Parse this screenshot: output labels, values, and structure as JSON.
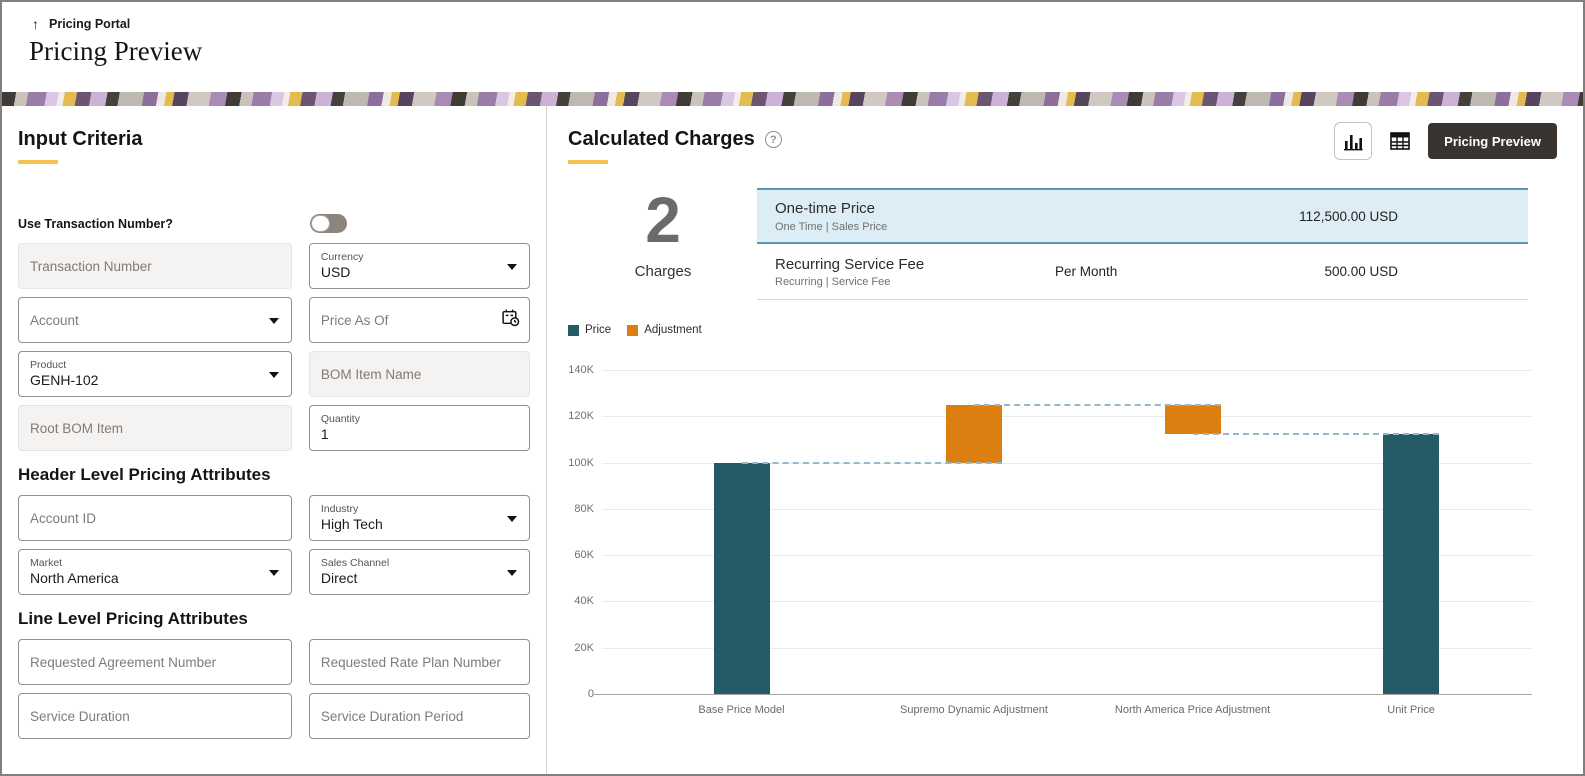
{
  "header": {
    "breadcrumb": "Pricing Portal",
    "title": "Pricing Preview"
  },
  "colors": {
    "accent_yellow": "#F2C14E",
    "price_teal": "#255B66",
    "adjustment_orange": "#DD7F10",
    "selected_row_bg": "#DDEDF5",
    "selected_row_border": "#5E99B2",
    "primary_button_bg": "#393430"
  },
  "input_criteria": {
    "heading": "Input Criteria",
    "use_transaction_label": "Use Transaction Number?",
    "use_transaction_state": "off",
    "fields": {
      "transaction_number": {
        "placeholder": "Transaction Number"
      },
      "currency": {
        "label": "Currency",
        "value": "USD"
      },
      "account": {
        "placeholder": "Account"
      },
      "price_as_of": {
        "placeholder": "Price As Of"
      },
      "product": {
        "label": "Product",
        "value": "GENH-102"
      },
      "bom_item_name": {
        "placeholder": "BOM Item Name"
      },
      "root_bom_item": {
        "placeholder": "Root BOM Item"
      },
      "quantity": {
        "label": "Quantity",
        "value": "1"
      }
    }
  },
  "header_attributes": {
    "heading": "Header Level Pricing Attributes",
    "fields": {
      "account_id": {
        "placeholder": "Account ID"
      },
      "industry": {
        "label": "Industry",
        "value": "High Tech"
      },
      "market": {
        "label": "Market",
        "value": "North America"
      },
      "sales_channel": {
        "label": "Sales Channel",
        "value": "Direct"
      }
    }
  },
  "line_attributes": {
    "heading": "Line Level Pricing Attributes",
    "fields": {
      "requested_agreement_number": {
        "placeholder": "Requested Agreement Number"
      },
      "requested_rate_plan_number": {
        "placeholder": "Requested Rate Plan Number"
      },
      "service_duration": {
        "placeholder": "Service Duration"
      },
      "service_duration_period": {
        "placeholder": "Service Duration Period"
      }
    }
  },
  "calculated": {
    "heading": "Calculated Charges",
    "toolbar": {
      "pricing_preview_label": "Pricing Preview"
    },
    "charges_count": "2",
    "charges_label": "Charges",
    "rows": [
      {
        "name": "One-time Price",
        "sub": "One Time | Sales Price",
        "freq": "",
        "amount": "112,500.00 USD",
        "selected": true
      },
      {
        "name": "Recurring Service Fee",
        "sub": "Recurring | Service Fee",
        "freq": "Per Month",
        "amount": "500.00 USD",
        "selected": false
      }
    ]
  },
  "chart_data": {
    "type": "bar",
    "subtype": "waterfall",
    "title": "",
    "xlabel": "",
    "ylabel": "",
    "categories": [
      "Base Price Model",
      "Supremo Dynamic Adjustment",
      "North America Price Adjustment",
      "Unit Price"
    ],
    "bars": [
      {
        "label": "Base Price Model",
        "start": 0,
        "end": 100000,
        "series": "Price"
      },
      {
        "label": "Supremo Dynamic Adjustment",
        "start": 100000,
        "end": 125000,
        "series": "Adjustment"
      },
      {
        "label": "North America Price Adjustment",
        "start": 125000,
        "end": 112500,
        "series": "Adjustment"
      },
      {
        "label": "Unit Price",
        "start": 0,
        "end": 112500,
        "series": "Price"
      }
    ],
    "legend": [
      {
        "name": "Price",
        "color": "#255B66"
      },
      {
        "name": "Adjustment",
        "color": "#DD7F10"
      }
    ],
    "ylim": [
      0,
      140000
    ],
    "ytick_step": 20000,
    "ytick_labels": [
      "0",
      "20K",
      "40K",
      "60K",
      "80K",
      "100K",
      "120K",
      "140K"
    ],
    "grid": true,
    "legend_position": "top-left",
    "connector_style": "dashed"
  }
}
